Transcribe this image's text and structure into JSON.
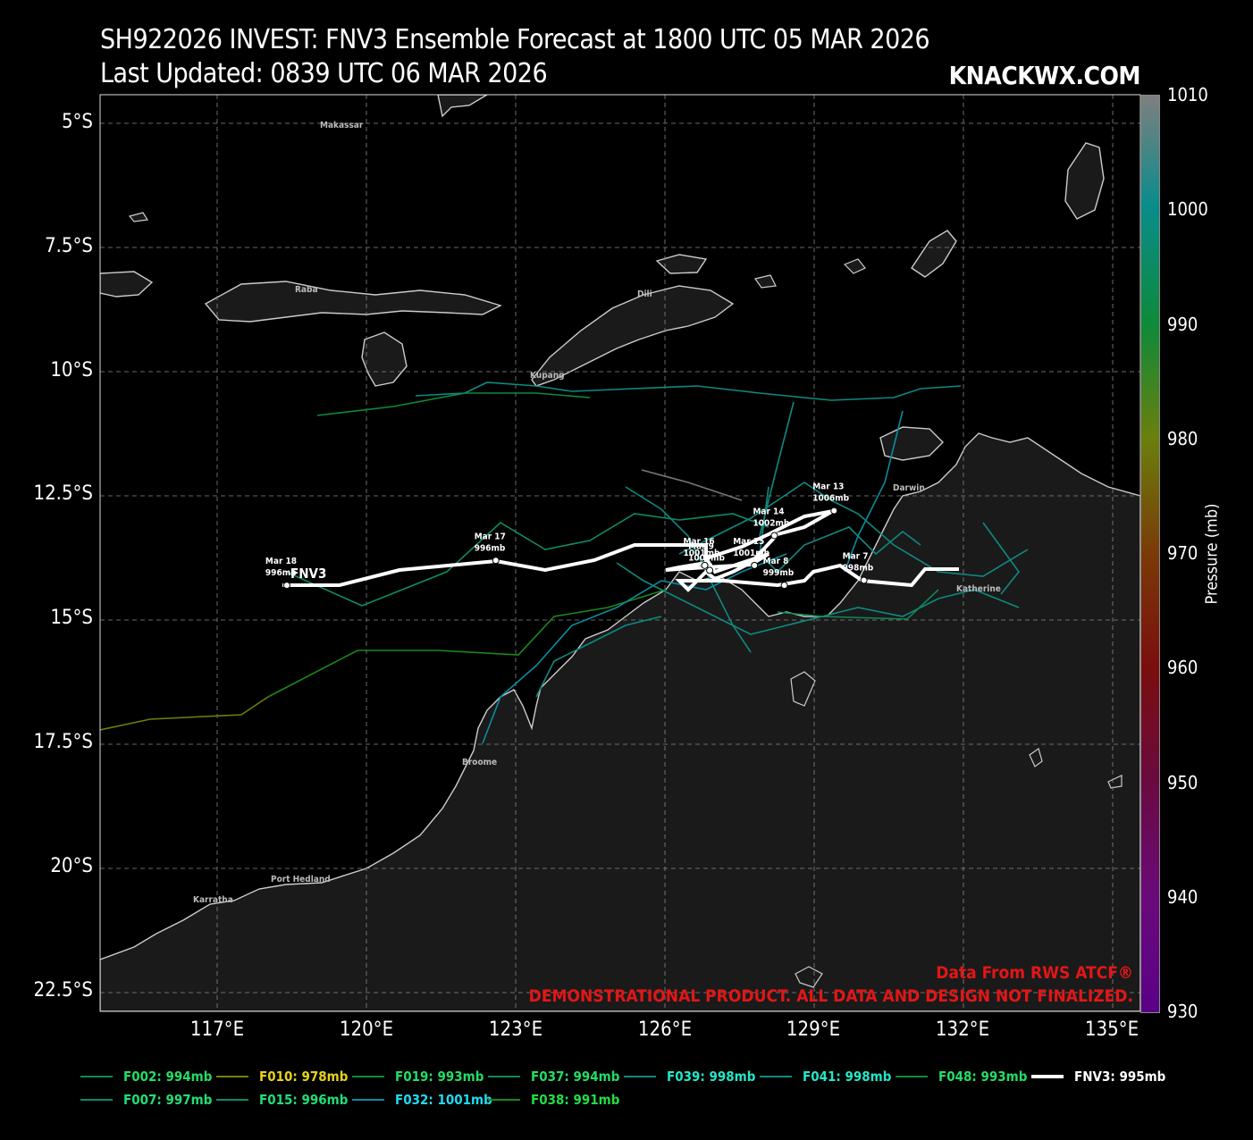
{
  "title_line1": "SH922026 INVEST: FNV3 Ensemble Forecast at 1800 UTC 05 MAR 2026",
  "title_line2": "Last Updated: 0839 UTC 06 MAR 2026",
  "brand": "KNACKWX.COM",
  "credits": {
    "line1": "Data From RWS ATCF®",
    "line2": "DEMONSTRATIONAL PRODUCT. ALL DATA AND DESIGN NOT FINALIZED."
  },
  "axes": {
    "lat_ticks": [
      "5°S",
      "7.5°S",
      "10°S",
      "12.5°S",
      "15°S",
      "17.5°S",
      "20°S",
      "22.5°S"
    ],
    "lon_ticks": [
      "117°E",
      "120°E",
      "123°E",
      "126°E",
      "129°E",
      "132°E",
      "135°E"
    ]
  },
  "colorbar": {
    "label": "Pressure (mb)",
    "ticks": [
      "1010",
      "1000",
      "990",
      "980",
      "970",
      "960",
      "950",
      "940",
      "930"
    ]
  },
  "cities": [
    {
      "name": "Makassar"
    },
    {
      "name": "Raba"
    },
    {
      "name": "Dili"
    },
    {
      "name": "Kupang"
    },
    {
      "name": "Darwin"
    },
    {
      "name": "Katherine"
    },
    {
      "name": "Broome"
    },
    {
      "name": "Port Hedland"
    },
    {
      "name": "Karratha"
    }
  ],
  "main_track": {
    "name": "FNV3",
    "color": "#ffffff",
    "points": [
      {
        "date": "Mar 13",
        "pressure": "1006mb",
        "lon": 129.4,
        "lat": -12.8
      },
      {
        "date": "Mar 7",
        "pressure": "998mb",
        "lon": 130.0,
        "lat": -14.2
      },
      {
        "date": "Mar 8",
        "pressure": "999mb",
        "lon": 128.4,
        "lat": -14.3
      },
      {
        "date": "Mar 9",
        "pressure": "1000mb",
        "lon": 126.9,
        "lat": -14.0
      },
      {
        "date": "Mar 14",
        "pressure": "1002mb",
        "lon": 128.2,
        "lat": -13.3
      },
      {
        "date": "Mar 15",
        "pressure": "1001mb",
        "lon": 127.8,
        "lat": -13.9
      },
      {
        "date": "Mar 16",
        "pressure": "1001mb",
        "lon": 126.8,
        "lat": -13.9
      },
      {
        "date": "Mar 17",
        "pressure": "996mb",
        "lon": 122.6,
        "lat": -13.8
      },
      {
        "date": "Mar 18",
        "pressure": "996mb",
        "lon": 118.4,
        "lat": -14.3
      }
    ]
  },
  "legend": [
    {
      "label": "F002: 994mb",
      "color": "#0e8a55",
      "text_color": "#22dd66"
    },
    {
      "label": "F010: 978mb",
      "color": "#7a7f0c",
      "text_color": "#e6d21a"
    },
    {
      "label": "F019: 993mb",
      "color": "#0e8a3a",
      "text_color": "#22dd66"
    },
    {
      "label": "F037: 994mb",
      "color": "#0e8a55",
      "text_color": "#22dd66"
    },
    {
      "label": "F039: 998mb",
      "color": "#0e8a80",
      "text_color": "#22e6c8"
    },
    {
      "label": "F041: 998mb",
      "color": "#0e8a80",
      "text_color": "#22e6c8"
    },
    {
      "label": "F048: 993mb",
      "color": "#0e8a3a",
      "text_color": "#22dd66"
    },
    {
      "label": "FNV3: 995mb",
      "color": "#ffffff",
      "text_color": "#ffffff"
    },
    {
      "label": "F007: 997mb",
      "color": "#0e8a6a",
      "text_color": "#22dd77"
    },
    {
      "label": "F015: 996mb",
      "color": "#0e8a6a",
      "text_color": "#22dd77"
    },
    {
      "label": "F032: 1001mb",
      "color": "#0a8ca0",
      "text_color": "#22d8f0"
    },
    {
      "label": "F038: 991mb",
      "color": "#1a8a1a",
      "text_color": "#22dd44"
    }
  ]
}
